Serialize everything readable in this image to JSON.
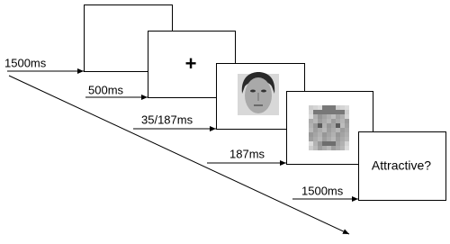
{
  "steps": [
    {
      "duration": "1500ms"
    },
    {
      "duration": "500ms",
      "content": "+"
    },
    {
      "duration": "35/187ms"
    },
    {
      "duration": "187ms"
    },
    {
      "duration": "1500ms",
      "content": "Attractive?"
    }
  ]
}
